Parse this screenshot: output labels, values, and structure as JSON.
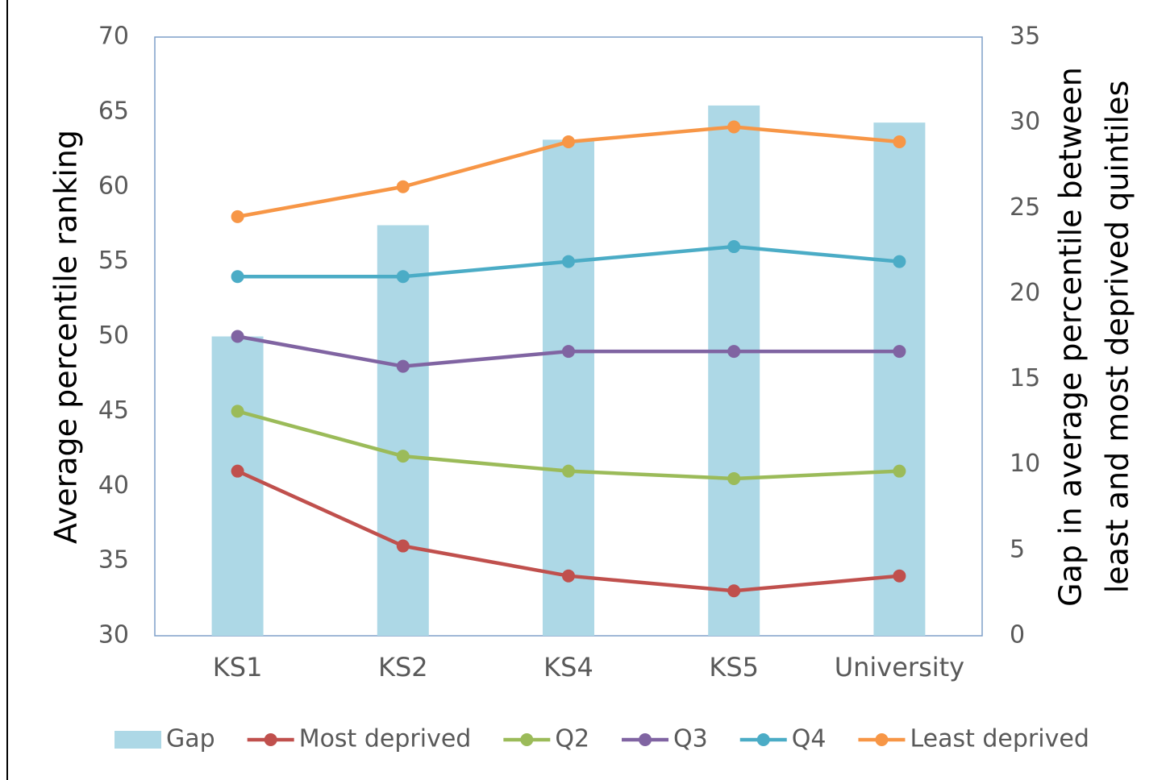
{
  "chart_data": {
    "type": "bar-line",
    "categories": [
      "KS1",
      "KS2",
      "KS4",
      "KS5",
      "University"
    ],
    "ylabel": "Average percentile ranking",
    "y2label": [
      "Gap in average percentile between",
      "least and most deprived quintiles"
    ],
    "ylim": [
      30,
      70
    ],
    "yticks": [
      30,
      35,
      40,
      45,
      50,
      55,
      60,
      65,
      70
    ],
    "y2lim": [
      0,
      35
    ],
    "y2ticks": [
      0,
      5,
      10,
      15,
      20,
      25,
      30,
      35
    ],
    "legend": "bottom",
    "series": [
      {
        "name": "Gap",
        "type": "bar",
        "axis": "y2",
        "color": "#add8e6",
        "values": [
          17.5,
          24,
          29,
          31,
          30
        ]
      },
      {
        "name": "Most deprived",
        "type": "line",
        "color": "#c0504d",
        "values": [
          41,
          36,
          34,
          33,
          34
        ]
      },
      {
        "name": "Q2",
        "type": "line",
        "color": "#9bbb59",
        "values": [
          45,
          42,
          41,
          40.5,
          41
        ]
      },
      {
        "name": "Q3",
        "type": "line",
        "color": "#8064a2",
        "values": [
          50,
          48,
          49,
          49,
          49
        ]
      },
      {
        "name": "Q4",
        "type": "line",
        "color": "#4bacc6",
        "values": [
          54,
          54,
          55,
          56,
          55
        ]
      },
      {
        "name": "Least deprived",
        "type": "line",
        "color": "#f79646",
        "values": [
          58,
          60,
          63,
          64,
          63
        ]
      }
    ]
  }
}
